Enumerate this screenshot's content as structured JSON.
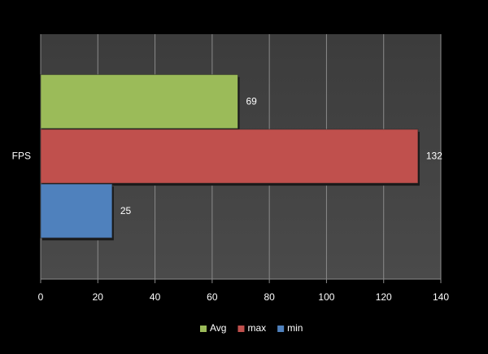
{
  "chart_data": {
    "type": "bar",
    "orientation": "horizontal",
    "categories": [
      "FPS"
    ],
    "series": [
      {
        "name": "Avg",
        "color": "#9bbb59",
        "values": [
          69
        ]
      },
      {
        "name": "max",
        "color": "#c0504d",
        "values": [
          132
        ]
      },
      {
        "name": "min",
        "color": "#4f81bd",
        "values": [
          25
        ]
      }
    ],
    "xlim": [
      0,
      140
    ],
    "xticks": [
      0,
      20,
      40,
      60,
      80,
      100,
      120,
      140
    ],
    "grid": true,
    "legend": "bottom"
  }
}
